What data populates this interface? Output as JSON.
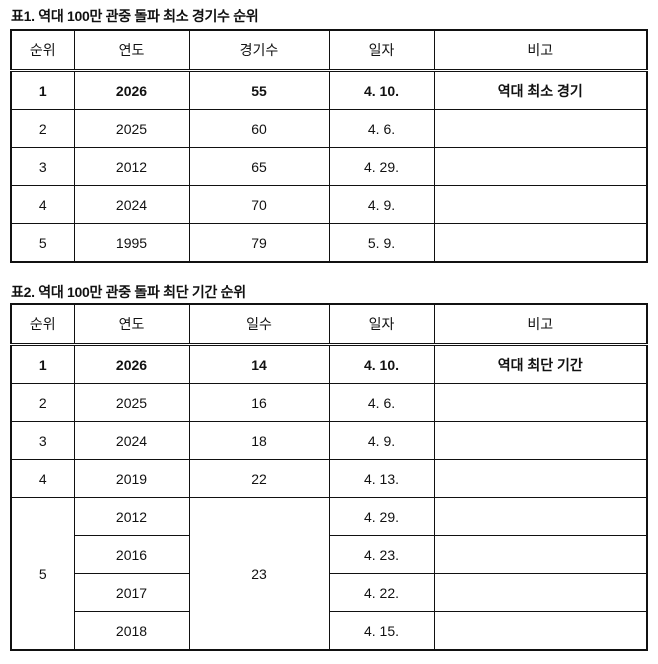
{
  "table1": {
    "title": "표1. 역대 100만 관중 돌파 최소 경기수 순위",
    "headers": [
      "순위",
      "연도",
      "경기수",
      "일자",
      "비고"
    ],
    "rows": [
      [
        "1",
        "2026",
        "55",
        "4. 10.",
        "역대 최소 경기"
      ],
      [
        "2",
        "2025",
        "60",
        "4. 6.",
        ""
      ],
      [
        "3",
        "2012",
        "65",
        "4. 29.",
        ""
      ],
      [
        "4",
        "2024",
        "70",
        "4. 9.",
        ""
      ],
      [
        "5",
        "1995",
        "79",
        "5. 9.",
        ""
      ]
    ]
  },
  "table2": {
    "title": "표2. 역대 100만 관중 돌파 최단 기간 순위",
    "headers": [
      "순위",
      "연도",
      "일수",
      "일자",
      "비고"
    ],
    "rows": [
      [
        "1",
        "2026",
        "14",
        "4. 10.",
        "역대 최단 기간"
      ],
      [
        "2",
        "2025",
        "16",
        "4. 6.",
        ""
      ],
      [
        "3",
        "2024",
        "18",
        "4. 9.",
        ""
      ],
      [
        "4",
        "2019",
        "22",
        "4. 13.",
        ""
      ]
    ],
    "group": {
      "rank": "5",
      "days": "23",
      "entries": [
        [
          "2012",
          "4. 29."
        ],
        [
          "2016",
          "4. 23."
        ],
        [
          "2017",
          "4. 22."
        ],
        [
          "2018",
          "4. 15."
        ]
      ]
    }
  }
}
